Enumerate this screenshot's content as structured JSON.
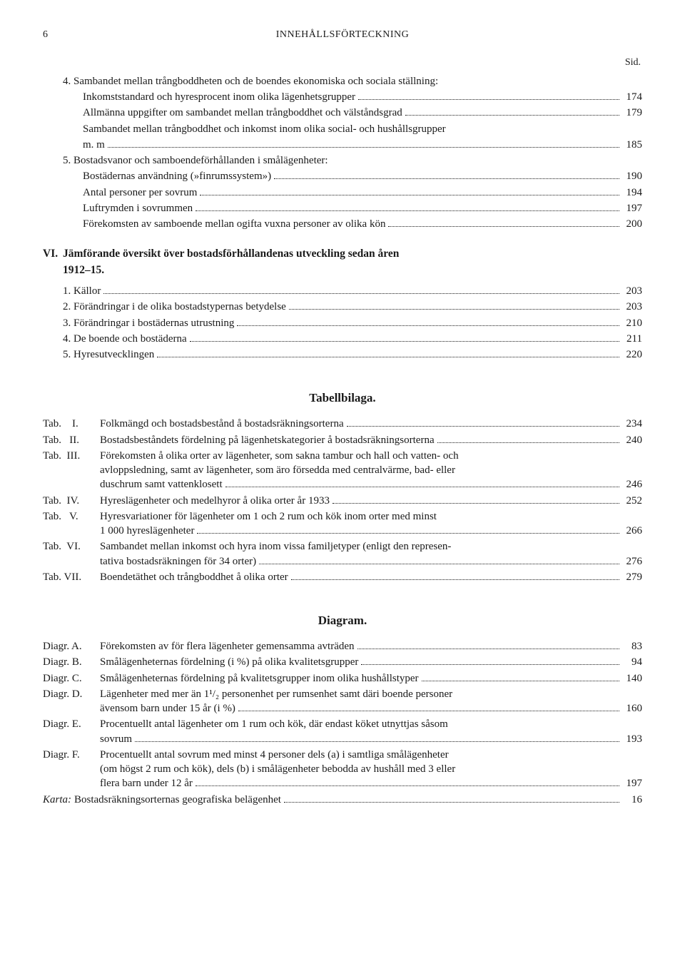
{
  "header": {
    "page": "6",
    "title": "INNEHÅLLSFÖRTECKNING"
  },
  "sid": "Sid.",
  "s4": {
    "num": "4.",
    "l1": "Sambandet mellan trångboddheten och de boendes ekonomiska och sociala ställning:",
    "a": {
      "t": "Inkomststandard och hyresprocent inom olika lägenhetsgrupper",
      "p": "174"
    },
    "b": {
      "t": "Allmänna uppgifter om sambandet mellan trångboddhet och välståndsgrad",
      "p": "179"
    },
    "c1": "Sambandet mellan trångboddhet och inkomst inom olika social- och hushållsgrupper",
    "c2": {
      "t": "m. m",
      "p": "185"
    }
  },
  "s5": {
    "num": "5.",
    "l1": "Bostadsvanor och samboendeförhållanden i smålägenheter:",
    "a": {
      "t": "Bostädernas användning (»finrumssystem»)",
      "p": "190"
    },
    "b": {
      "t": "Antal personer per sovrum",
      "p": "194"
    },
    "c": {
      "t": "Luftrymden i sovrummen",
      "p": "197"
    },
    "d": {
      "t": "Förekomsten av samboende mellan ogifta vuxna personer av olika kön",
      "p": "200"
    }
  },
  "vi": {
    "roman": "VI.",
    "title1": "Jämförande översikt över bostadsförhållandenas utveckling sedan åren",
    "title2": "1912–15.",
    "e1": {
      "n": "1.",
      "t": "Källor",
      "p": "203"
    },
    "e2": {
      "n": "2.",
      "t": "Förändringar i de olika bostadstypernas betydelse",
      "p": "203"
    },
    "e3": {
      "n": "3.",
      "t": "Förändringar i bostädernas utrustning",
      "p": "210"
    },
    "e4": {
      "n": "4.",
      "t": "De boende och bostäderna",
      "p": "211"
    },
    "e5": {
      "n": "5.",
      "t": "Hyresutvecklingen",
      "p": "220"
    }
  },
  "tabell": {
    "heading": "Tabellbilaga.",
    "rows": {
      "r1": {
        "label": "Tab.    I.",
        "t": "Folkmängd och bostadsbestånd å bostadsräkningsorterna",
        "p": "234"
      },
      "r2": {
        "label": "Tab.   II.",
        "t": "Bostadsbeståndets fördelning på lägenhetskategorier å bostadsräkningsorterna",
        "p": "240"
      },
      "r3": {
        "label": "Tab.  III.",
        "l1": "Förekomsten å olika orter av lägenheter, som sakna tambur och hall och vatten- och",
        "l2": "avloppsledning, samt av lägenheter, som äro försedda med centralvärme, bad- eller",
        "l3": "duschrum samt vattenklosett",
        "p": "246"
      },
      "r4": {
        "label": "Tab.  IV.",
        "t": "Hyreslägenheter och medelhyror å olika orter år 1933",
        "p": "252"
      },
      "r5": {
        "label": "Tab.   V.",
        "l1": "Hyresvariationer för lägenheter om 1 och 2 rum och kök inom orter med minst",
        "l2": "1 000 hyreslägenheter",
        "p": "266"
      },
      "r6": {
        "label": "Tab.  VI.",
        "l1": "Sambandet mellan inkomst och hyra inom vissa familjetyper (enligt den represen-",
        "l2": "tativa bostadsräkningen för 34 orter)",
        "p": "276"
      },
      "r7": {
        "label": "Tab. VII.",
        "t": "Boendetäthet och trångboddhet å olika orter",
        "p": "279"
      }
    }
  },
  "diagram": {
    "heading": "Diagram.",
    "rows": {
      "a": {
        "label": "Diagr. A.",
        "t": "Förekomsten av för flera lägenheter gemensamma avträden",
        "p": "83"
      },
      "b": {
        "label": "Diagr. B.",
        "t": "Smålägenheternas fördelning (i %) på olika kvalitetsgrupper",
        "p": "94"
      },
      "c": {
        "label": "Diagr. C.",
        "t": "Smålägenheternas fördelning på kvalitetsgrupper inom olika hushållstyper",
        "p": "140"
      },
      "d": {
        "label": "Diagr. D.",
        "l1": "Lägenheter med mer än 1¹/₂ personenhet per rumsenhet samt däri boende personer",
        "l2": "ävensom barn under 15 år (i %)",
        "p": "160"
      },
      "e": {
        "label": "Diagr. E.",
        "l1": "Procentuellt antal lägenheter om 1 rum och kök, där endast köket utnyttjas såsom",
        "l2": "sovrum",
        "p": "193"
      },
      "f": {
        "label": "Diagr. F.",
        "l1": "Procentuellt antal sovrum med minst 4 personer dels (a) i samtliga smålägenheter",
        "l2": "(om högst 2 rum och kök), dels (b) i smålägenheter bebodda av hushåll med 3 eller",
        "l3": "flera barn under 12 år",
        "p": "197"
      }
    },
    "karta": {
      "label": "Karta:",
      "t": "Bostadsräkningsorternas geografiska belägenhet",
      "p": "16"
    }
  }
}
